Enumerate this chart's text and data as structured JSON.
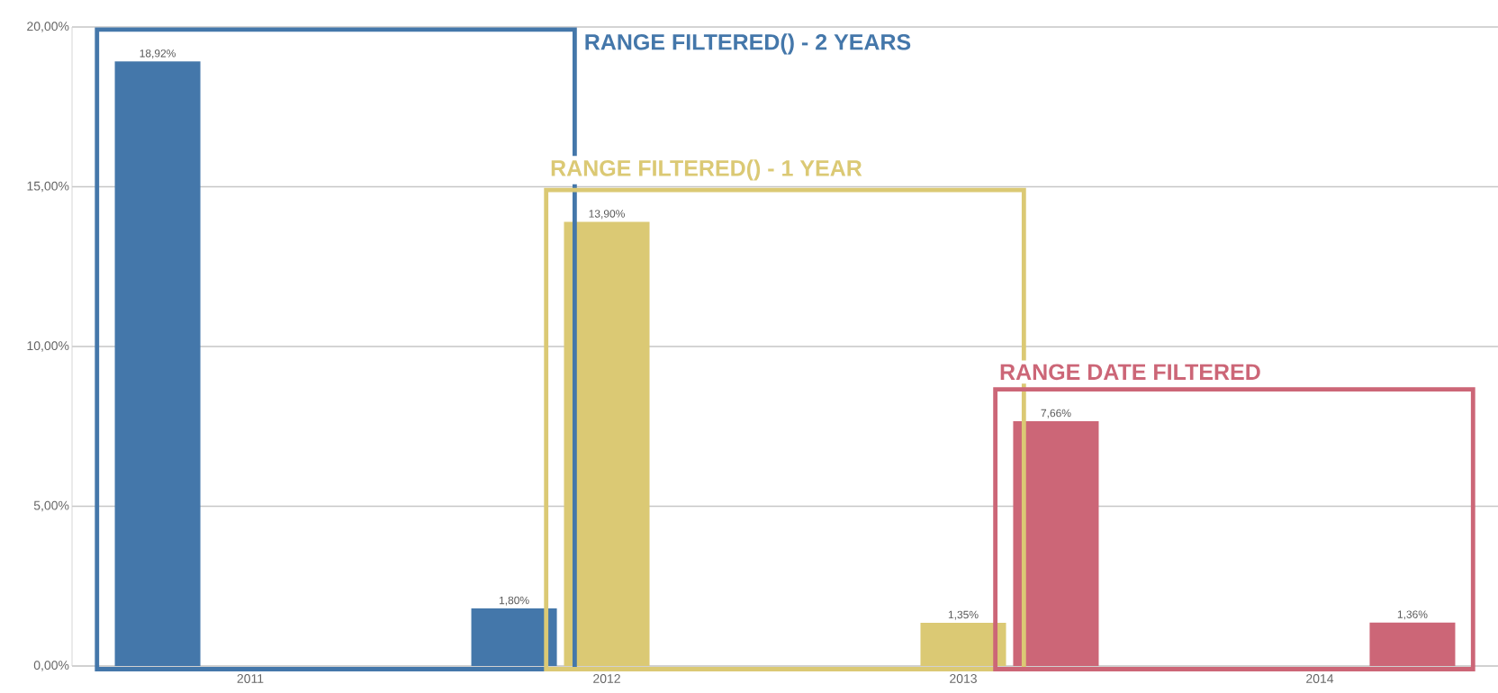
{
  "chart_data": {
    "type": "bar",
    "categories": [
      "2011",
      "2012",
      "2013",
      "2014"
    ],
    "series": [
      {
        "name": "RANGE FILTERED() - 2 YEARS",
        "color": "#4477aa",
        "values": [
          18.92,
          1.8,
          null,
          null
        ],
        "value_labels": [
          "18,92%",
          "1,80%",
          null,
          null
        ]
      },
      {
        "name": "RANGE FILTERED() - 1 YEAR",
        "color": "#dbc974",
        "values": [
          null,
          13.9,
          1.35,
          null
        ],
        "value_labels": [
          null,
          "13,90%",
          "1,35%",
          null
        ]
      },
      {
        "name": "RANGE DATE FILTERED",
        "color": "#cc6677",
        "values": [
          null,
          null,
          7.66,
          1.36
        ],
        "value_labels": [
          null,
          null,
          "7,66%",
          "1,36%"
        ]
      }
    ],
    "ylim": [
      0,
      20
    ],
    "yticks": [
      {
        "value": 0,
        "label": "0,00%"
      },
      {
        "value": 5,
        "label": "5,00%"
      },
      {
        "value": 10,
        "label": "10,00%"
      },
      {
        "value": 15,
        "label": "15,00%"
      },
      {
        "value": 20,
        "label": "20,00%"
      }
    ],
    "grid": "y"
  }
}
